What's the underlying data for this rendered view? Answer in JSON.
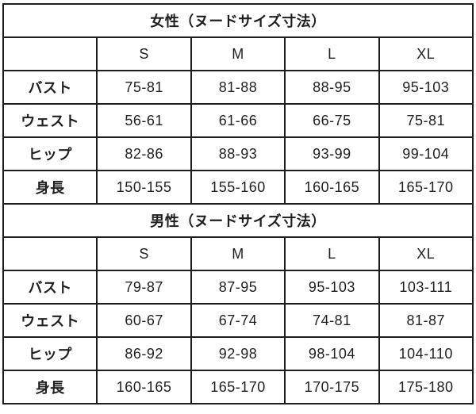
{
  "style": {
    "background": "#ffffff",
    "border_color": "#1c1c1c",
    "text_color": "#1f1f1f"
  },
  "chart_data": [
    {
      "type": "table",
      "title": "女性（ヌードサイズ寸法）",
      "columns": [
        "",
        "S",
        "M",
        "L",
        "XL"
      ],
      "rows": [
        [
          "バスト",
          "75-81",
          "81-88",
          "88-95",
          "95-103"
        ],
        [
          "ウェスト",
          "56-61",
          "61-66",
          "66-75",
          "75-81"
        ],
        [
          "ヒップ",
          "82-86",
          "88-93",
          "93-99",
          "99-104"
        ],
        [
          "身長",
          "150-155",
          "155-160",
          "160-165",
          "165-170"
        ]
      ]
    },
    {
      "type": "table",
      "title": "男性（ヌードサイズ寸法）",
      "columns": [
        "",
        "S",
        "M",
        "L",
        "XL"
      ],
      "rows": [
        [
          "バスト",
          "79-87",
          "87-95",
          "95-103",
          "103-111"
        ],
        [
          "ウェスト",
          "60-67",
          "67-74",
          "74-81",
          "81-87"
        ],
        [
          "ヒップ",
          "86-92",
          "92-98",
          "98-104",
          "104-110"
        ],
        [
          "身長",
          "160-165",
          "165-170",
          "170-175",
          "175-180"
        ]
      ]
    }
  ]
}
